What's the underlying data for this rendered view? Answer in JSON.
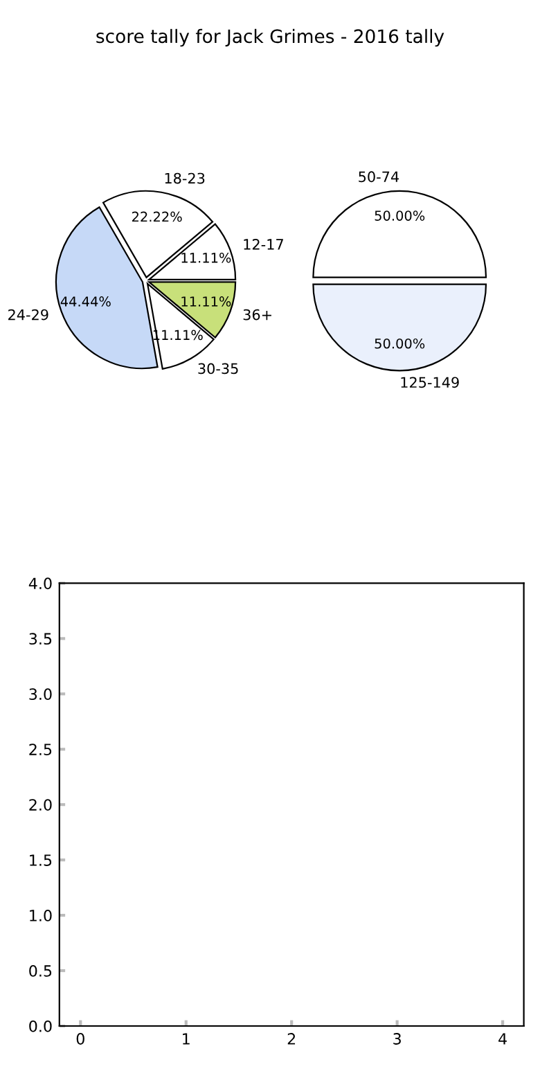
{
  "chart_data": [
    {
      "type": "pie",
      "title": "score tally for Jack Grimes - 2016 tally",
      "categories": [
        "12-17",
        "18-23",
        "24-29",
        "30-35",
        "36+"
      ],
      "values": [
        11.11,
        22.22,
        44.44,
        11.11,
        11.11
      ],
      "value_labels": [
        "11.11%",
        "22.22%",
        "44.44%",
        "11.11%",
        "11.11%"
      ],
      "colors": [
        "#ffffff",
        "#ffffff",
        "#c6d9f7",
        "#ffffff",
        "#c8e07a"
      ]
    },
    {
      "type": "pie",
      "categories": [
        "50-74",
        "125-149"
      ],
      "values": [
        50,
        50
      ],
      "value_labels": [
        "50.00%",
        "50.00%"
      ],
      "colors": [
        "#ffffff",
        "#eaf0fc"
      ]
    },
    {
      "type": "scatter",
      "xlim": [
        -0.2,
        4.2
      ],
      "ylim": [
        0,
        4
      ],
      "xticks": [
        0,
        1,
        2,
        3,
        4
      ],
      "yticks": [
        {
          "value": 0,
          "label": "0.0"
        },
        {
          "value": 0.5,
          "label": "0.5"
        },
        {
          "value": 1,
          "label": "1.0"
        },
        {
          "value": 1.5,
          "label": "1.5"
        },
        {
          "value": 2,
          "label": "2.0"
        },
        {
          "value": 2.5,
          "label": "2.5"
        },
        {
          "value": 3,
          "label": "3.0"
        },
        {
          "value": 3.5,
          "label": "3.5"
        },
        {
          "value": 4,
          "label": "4.0"
        }
      ]
    }
  ]
}
